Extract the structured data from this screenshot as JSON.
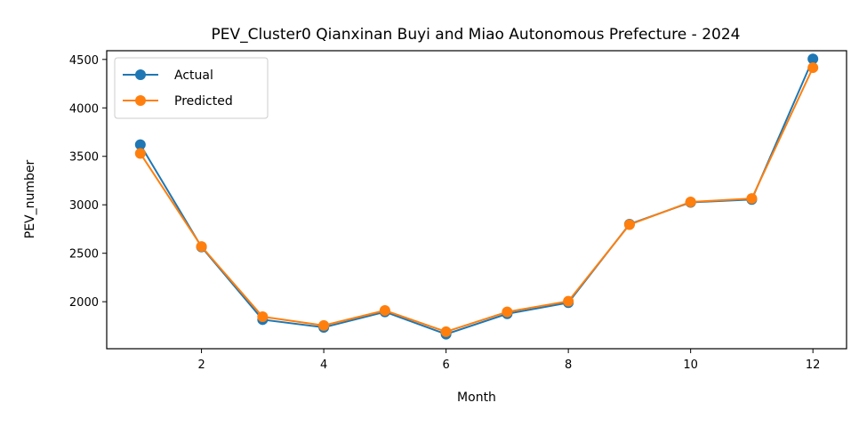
{
  "chart_data": {
    "type": "line",
    "title": "PEV_Cluster0 Qianxinan Buyi and Miao Autonomous Prefecture - 2024",
    "xlabel": "Month",
    "ylabel": "PEV_number",
    "x": [
      1,
      2,
      3,
      4,
      5,
      6,
      7,
      8,
      9,
      10,
      11,
      12
    ],
    "xlim": [
      0.45,
      12.55
    ],
    "ylim": [
      1515,
      4590
    ],
    "xticks": [
      2,
      4,
      6,
      8,
      10,
      12
    ],
    "yticks": [
      2000,
      2500,
      3000,
      3500,
      4000,
      4500
    ],
    "grid": false,
    "legend_position": "top-left",
    "series": [
      {
        "name": "Actual",
        "color": "#1f77b4",
        "values": [
          3620,
          2565,
          1815,
          1735,
          1895,
          1665,
          1875,
          1990,
          2800,
          3025,
          3055,
          4505
        ]
      },
      {
        "name": "Predicted",
        "color": "#ff7f0e",
        "values": [
          3530,
          2570,
          1845,
          1755,
          1910,
          1690,
          1895,
          2005,
          2795,
          3030,
          3065,
          4415
        ]
      }
    ]
  }
}
